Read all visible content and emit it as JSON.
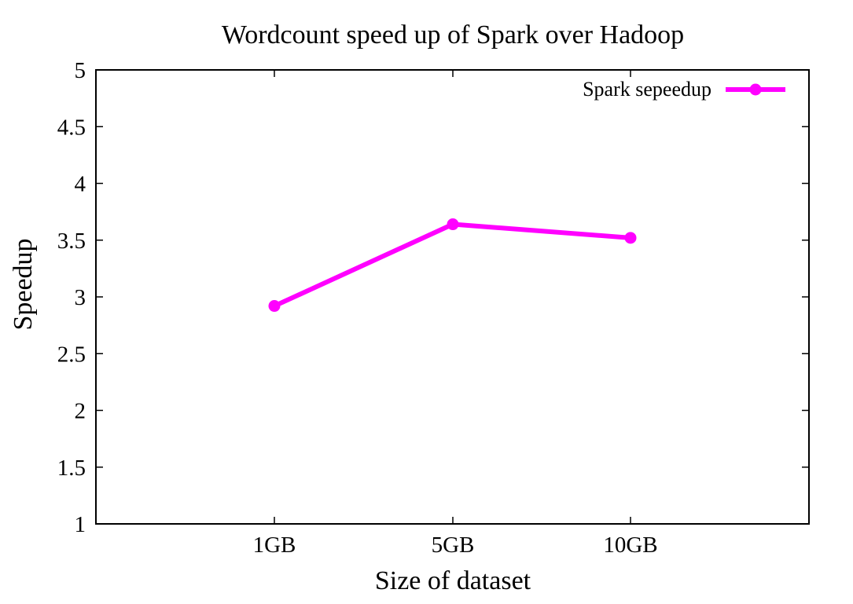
{
  "chart_data": {
    "type": "line",
    "title": "Wordcount speed up of Spark over Hadoop",
    "xlabel": "Size of dataset",
    "ylabel": "Speedup",
    "categories": [
      "1GB",
      "5GB",
      "10GB"
    ],
    "series": [
      {
        "name": "Spark sepeedup",
        "values": [
          2.92,
          3.64,
          3.52
        ],
        "color": "#ff00ff",
        "marker": "circle"
      }
    ],
    "ylim": [
      1,
      5
    ],
    "yticks": [
      "1",
      "1.5",
      "2",
      "2.5",
      "3",
      "3.5",
      "4",
      "4.5",
      "5"
    ],
    "grid": false,
    "legend_position": "top-right"
  }
}
